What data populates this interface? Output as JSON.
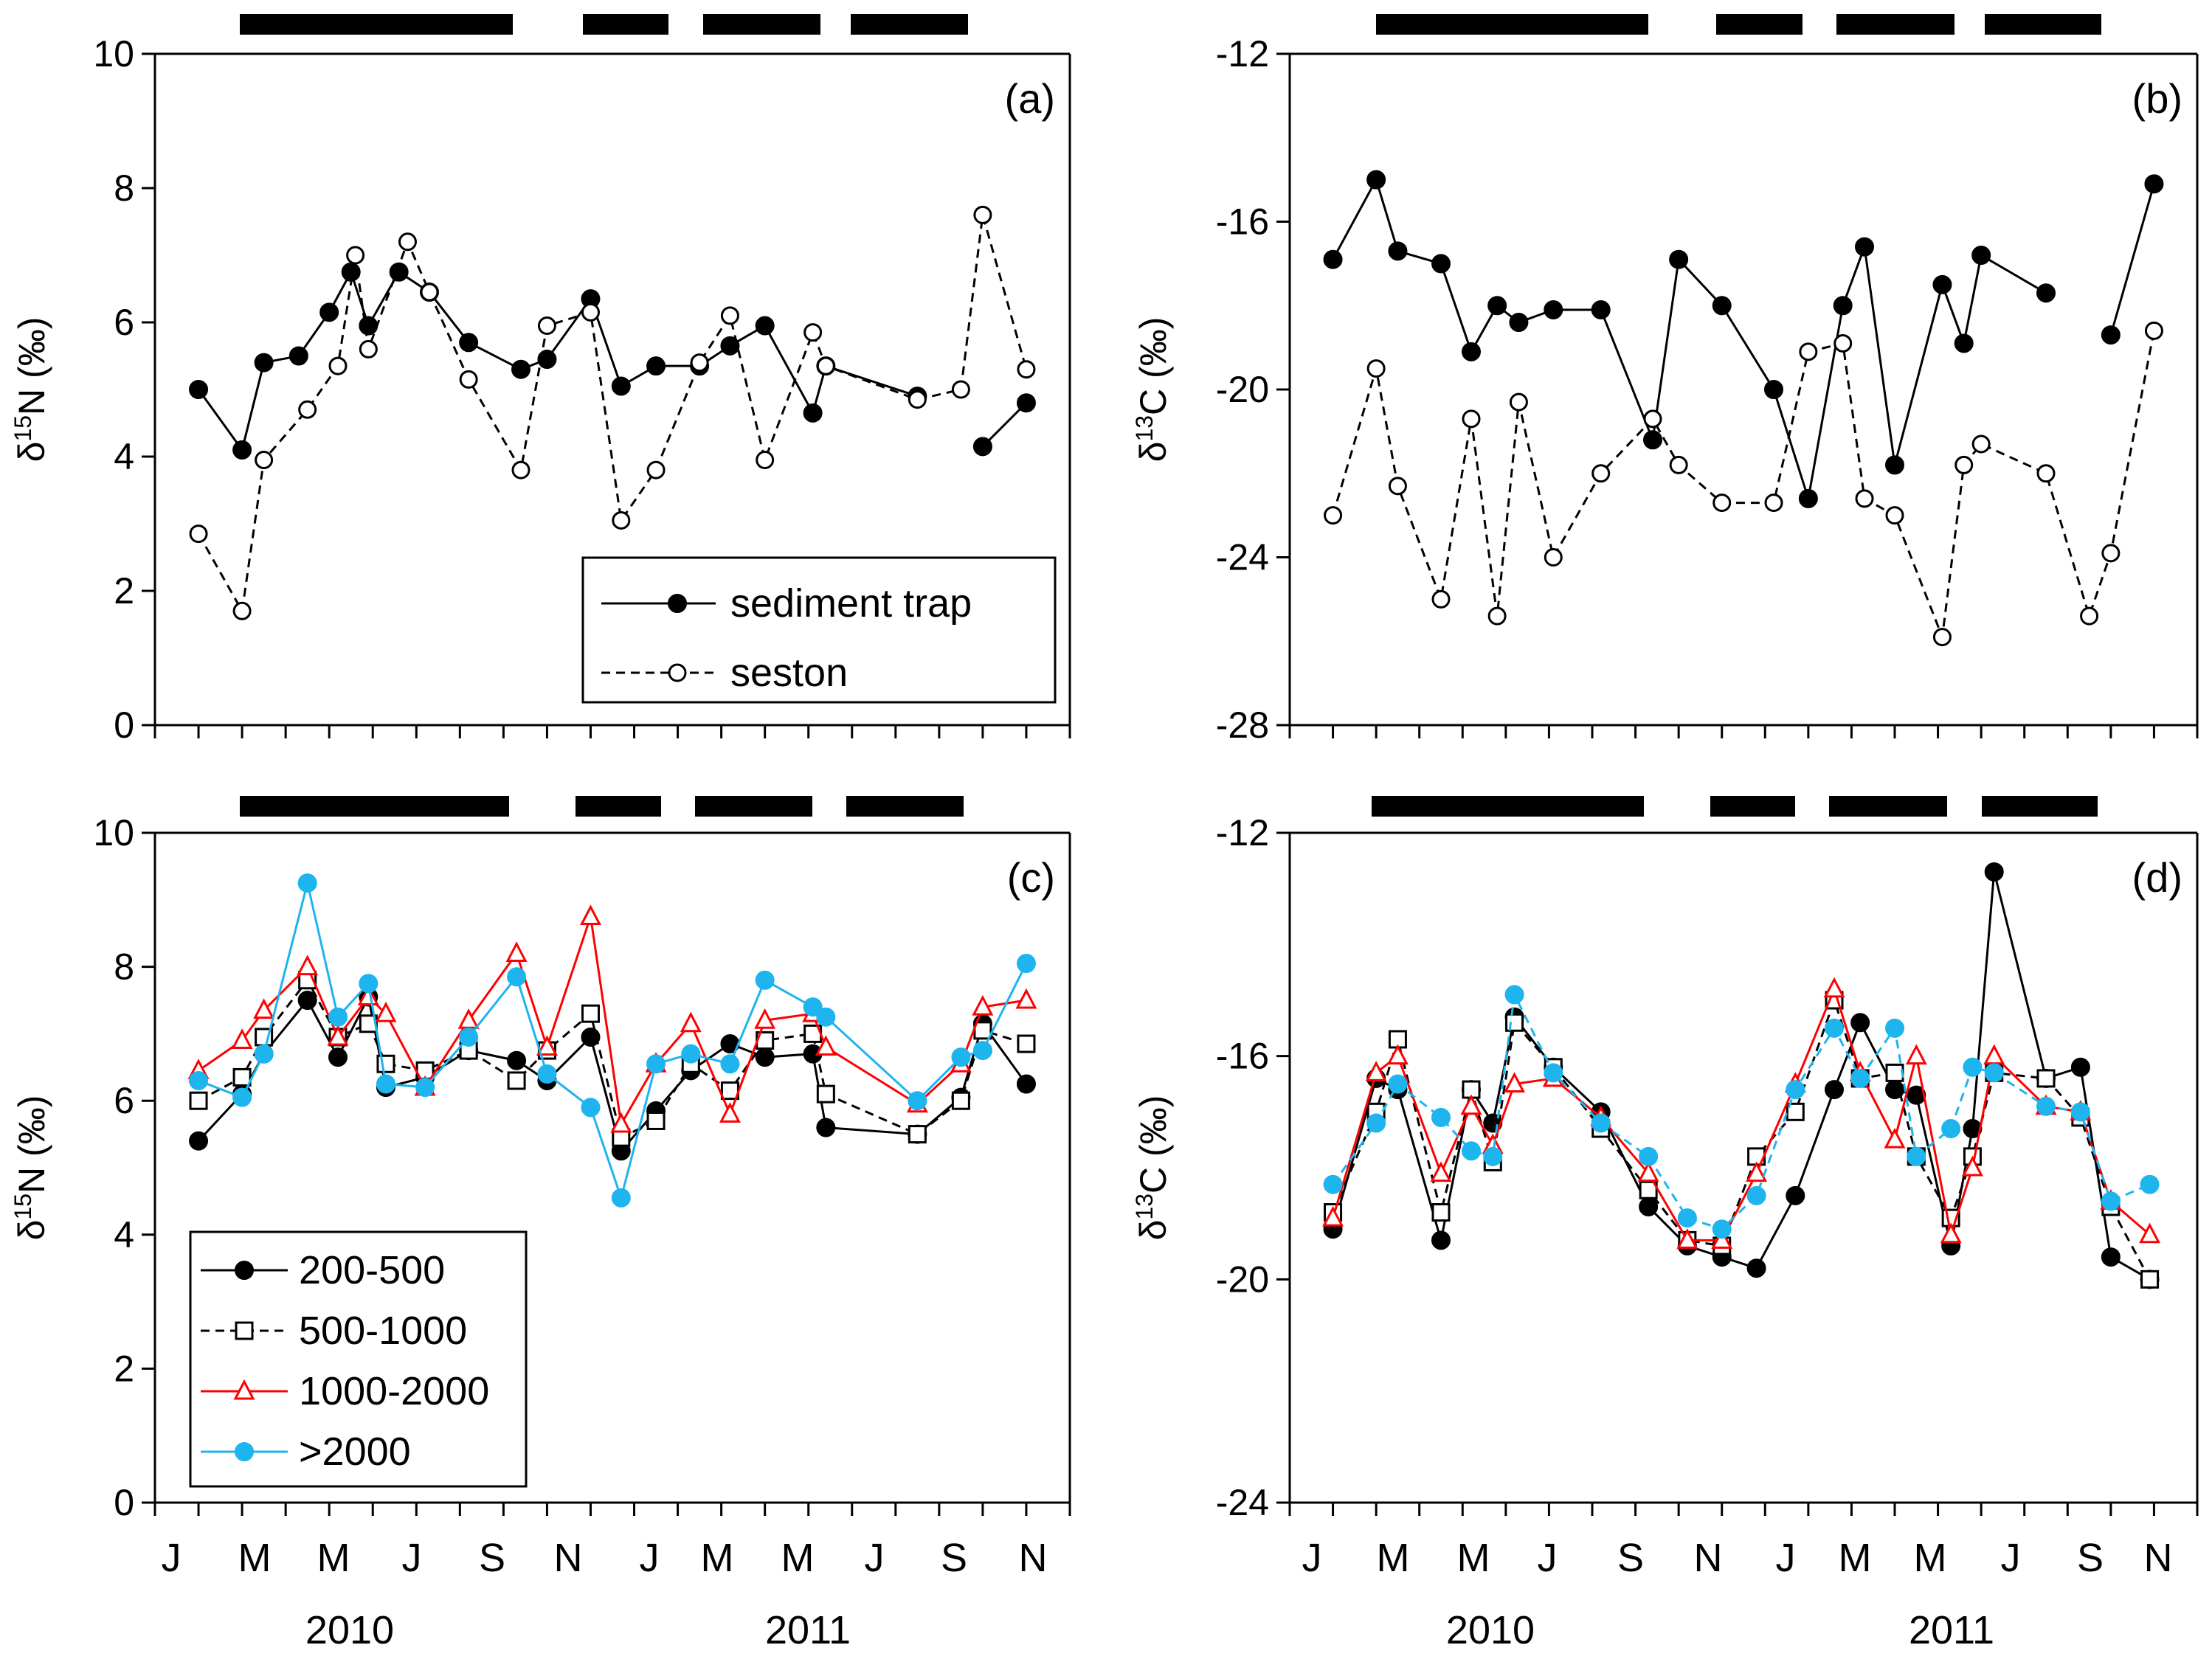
{
  "figure": {
    "month_ticks": [
      "J",
      "M",
      "M",
      "J",
      "S",
      "N",
      "J",
      "M",
      "M",
      "J",
      "S",
      "N"
    ],
    "year_labels": [
      "2010",
      "2011"
    ]
  },
  "chart_data": [
    {
      "type": "line",
      "panel_label": "(a)",
      "ylabel": "δ15N (‰)",
      "ylabel_parts": {
        "symbol": "δ",
        "sup": "15",
        "element": "N",
        "unit": "(‰)"
      },
      "ylim": [
        0,
        10
      ],
      "yticks": [
        0,
        2,
        4,
        6,
        8,
        10
      ],
      "ytick_labels": [
        "0",
        "2",
        "4",
        "6",
        "8",
        "10"
      ],
      "legend": "inside-bottom-right",
      "series": [
        {
          "name": "sediment trap",
          "style": "solid-filled",
          "color": "#000000",
          "points": [
            [
              1,
              5.0
            ],
            [
              2,
              4.1
            ],
            [
              2.5,
              5.4
            ],
            [
              3.3,
              5.5
            ],
            [
              4,
              6.15
            ],
            [
              4.5,
              6.75
            ],
            [
              4.9,
              5.95
            ],
            [
              5.6,
              6.75
            ],
            [
              6.3,
              6.45
            ],
            [
              7.2,
              5.7
            ],
            [
              8.4,
              5.3
            ],
            [
              9,
              5.45
            ],
            [
              10,
              6.35
            ],
            [
              10.7,
              5.05
            ],
            [
              11.5,
              5.35
            ],
            [
              12.5,
              5.35
            ],
            [
              13.2,
              5.65
            ],
            [
              14,
              5.95
            ],
            [
              15.1,
              4.65
            ],
            [
              15.4,
              5.35
            ],
            [
              17.5,
              4.9
            ]
          ],
          "points_break": [
            [
              19,
              4.15
            ],
            [
              20,
              4.8
            ]
          ]
        },
        {
          "name": "seston",
          "style": "dashed-open",
          "color": "#000000",
          "points": [
            [
              1,
              2.85
            ],
            [
              2,
              1.7
            ],
            [
              2.5,
              3.95
            ],
            [
              3.5,
              4.7
            ],
            [
              4.2,
              5.35
            ],
            [
              4.6,
              7.0
            ],
            [
              4.9,
              5.6
            ],
            [
              5.8,
              7.2
            ],
            [
              6.3,
              6.45
            ],
            [
              7.2,
              5.15
            ],
            [
              8.4,
              3.8
            ],
            [
              9,
              5.95
            ],
            [
              10,
              6.15
            ],
            [
              10.7,
              3.05
            ],
            [
              11.5,
              3.8
            ],
            [
              12.5,
              5.4
            ],
            [
              13.2,
              6.1
            ],
            [
              14,
              3.95
            ],
            [
              15.1,
              5.85
            ],
            [
              15.4,
              5.35
            ],
            [
              17.5,
              4.85
            ],
            [
              18.5,
              5.0
            ],
            [
              19,
              7.6
            ],
            [
              20,
              5.3
            ]
          ]
        }
      ]
    },
    {
      "type": "line",
      "panel_label": "(b)",
      "ylabel": "δ13C (‰)",
      "ylabel_parts": {
        "symbol": "δ",
        "sup": "13",
        "element": "C",
        "unit": "(‰)"
      },
      "ylim": [
        -28,
        -12
      ],
      "yticks": [
        -28,
        -24,
        -20,
        -16,
        -12
      ],
      "ytick_labels": [
        "-28",
        "-24",
        "-20",
        "-16",
        "-12"
      ],
      "series": [
        {
          "name": "sediment trap",
          "style": "solid-filled",
          "color": "#000000",
          "points": [
            [
              1,
              -16.9
            ],
            [
              2,
              -15.0
            ],
            [
              2.5,
              -16.7
            ],
            [
              3.5,
              -17.0
            ],
            [
              4.2,
              -19.1
            ],
            [
              4.8,
              -18.0
            ],
            [
              5.3,
              -18.4
            ],
            [
              6.1,
              -18.1
            ],
            [
              7.2,
              -18.1
            ],
            [
              8.4,
              -21.2
            ],
            [
              9,
              -16.9
            ],
            [
              10,
              -18.0
            ],
            [
              11.2,
              -20.0
            ],
            [
              12,
              -22.6
            ],
            [
              12.8,
              -18.0
            ],
            [
              13.3,
              -16.6
            ],
            [
              14,
              -21.8
            ],
            [
              15.1,
              -17.5
            ],
            [
              15.6,
              -18.9
            ],
            [
              16,
              -16.8
            ],
            [
              17.5,
              -17.7
            ]
          ],
          "points_break": [
            [
              19,
              -18.7
            ],
            [
              20,
              -15.1
            ]
          ]
        },
        {
          "name": "seston",
          "style": "dashed-open",
          "color": "#000000",
          "points": [
            [
              1,
              -23.0
            ],
            [
              2,
              -19.5
            ],
            [
              2.5,
              -22.3
            ],
            [
              3.5,
              -25.0
            ],
            [
              4.2,
              -20.7
            ],
            [
              4.8,
              -25.4
            ],
            [
              5.3,
              -20.3
            ],
            [
              6.1,
              -24.0
            ],
            [
              7.2,
              -22.0
            ],
            [
              8.4,
              -20.7
            ],
            [
              9,
              -21.8
            ],
            [
              10,
              -22.7
            ],
            [
              11.2,
              -22.7
            ],
            [
              12,
              -19.1
            ],
            [
              12.8,
              -18.9
            ],
            [
              13.3,
              -22.6
            ],
            [
              14,
              -23.0
            ],
            [
              15.1,
              -25.9
            ],
            [
              15.6,
              -21.8
            ],
            [
              16,
              -21.3
            ],
            [
              17.5,
              -22.0
            ],
            [
              18.5,
              -25.4
            ],
            [
              19,
              -23.9
            ],
            [
              20,
              -18.6
            ]
          ]
        }
      ]
    },
    {
      "type": "line",
      "panel_label": "(c)",
      "ylabel": "δ15N (‰)",
      "ylabel_parts": {
        "symbol": "δ",
        "sup": "15",
        "element": "N",
        "unit": "(‰)"
      },
      "ylim": [
        0,
        10
      ],
      "yticks": [
        0,
        2,
        4,
        6,
        8,
        10
      ],
      "ytick_labels": [
        "0",
        "2",
        "4",
        "6",
        "8",
        "10"
      ],
      "legend": "inside-bottom-left",
      "series": [
        {
          "name": "200-500",
          "style": "solid-filled",
          "color": "#000000",
          "x": [
            1,
            2,
            2.5,
            3.5,
            4.2,
            4.9,
            5.3,
            6.2,
            7.2,
            8.3,
            9,
            10,
            10.7,
            11.5,
            12.3,
            13.2,
            14,
            15.1,
            15.4,
            17.5,
            18.5,
            19,
            20
          ],
          "y": [
            5.4,
            6.1,
            6.7,
            7.5,
            6.65,
            7.55,
            6.2,
            6.35,
            6.75,
            6.6,
            6.3,
            6.95,
            5.25,
            5.85,
            6.45,
            6.85,
            6.65,
            6.7,
            5.6,
            5.5,
            6.05,
            7.15,
            6.25
          ]
        },
        {
          "name": "500-1000",
          "style": "dashed-open-square",
          "color": "#000000",
          "x": [
            1,
            2,
            2.5,
            3.5,
            4.2,
            4.9,
            5.3,
            6.2,
            7.2,
            8.3,
            9,
            10,
            10.7,
            11.5,
            12.3,
            13.2,
            14,
            15.1,
            15.4,
            17.5,
            18.5,
            19,
            20
          ],
          "y": [
            6.0,
            6.35,
            6.95,
            7.8,
            6.95,
            7.15,
            6.55,
            6.45,
            6.75,
            6.3,
            6.75,
            7.3,
            5.45,
            5.7,
            6.55,
            6.15,
            6.9,
            7.0,
            6.1,
            5.5,
            6.0,
            7.05,
            6.85
          ]
        },
        {
          "name": "1000-2000",
          "style": "solid-open-triangle",
          "color": "#ff0000",
          "x": [
            1,
            2,
            2.5,
            3.5,
            4.2,
            4.9,
            5.3,
            6.2,
            7.2,
            8.3,
            9,
            10,
            10.7,
            11.5,
            12.3,
            13.2,
            14,
            15.1,
            15.4,
            17.5,
            18.5,
            19,
            20
          ],
          "y": [
            6.45,
            6.9,
            7.35,
            8.0,
            6.95,
            7.55,
            7.3,
            6.2,
            7.2,
            8.2,
            6.8,
            8.75,
            5.65,
            6.55,
            7.15,
            5.8,
            7.2,
            7.3,
            6.8,
            5.95,
            6.55,
            7.4,
            7.5
          ]
        },
        {
          "name": ">2000",
          "style": "solid-filled",
          "color": "#1eb4ee",
          "x": [
            1,
            2,
            2.5,
            3.5,
            4.2,
            4.9,
            5.3,
            6.2,
            7.2,
            8.3,
            9,
            10,
            10.7,
            11.5,
            12.3,
            13.2,
            14,
            15.1,
            15.4,
            17.5,
            18.5,
            19,
            20
          ],
          "y": [
            6.3,
            6.05,
            6.7,
            9.25,
            7.25,
            7.75,
            6.25,
            6.2,
            6.95,
            7.85,
            6.4,
            5.9,
            4.55,
            6.55,
            6.7,
            6.55,
            7.8,
            7.4,
            7.25,
            6.0,
            6.65,
            6.75,
            8.05
          ]
        }
      ]
    },
    {
      "type": "line",
      "panel_label": "(d)",
      "ylabel": "δ13C (‰)",
      "ylabel_parts": {
        "symbol": "δ",
        "sup": "13",
        "element": "C",
        "unit": "(‰)"
      },
      "ylim": [
        -24,
        -12
      ],
      "yticks": [
        -24,
        -20,
        -16,
        -12
      ],
      "ytick_labels": [
        "-24",
        "-20",
        "-16",
        "-12"
      ],
      "xtick_labels": [
        "J",
        "M",
        "M",
        "J",
        "S",
        "N",
        "J",
        "M",
        "M",
        "J",
        "S",
        "N"
      ],
      "year_labels": [
        "2010",
        "2011"
      ],
      "series": [
        {
          "name": "200-500",
          "style": "solid-filled",
          "color": "#000000",
          "x": [
            1,
            2,
            2.5,
            3.5,
            4.2,
            4.7,
            5.2,
            6.1,
            7.2,
            8.3,
            9.2,
            10,
            10.8,
            11.7,
            12.6,
            13.2,
            14,
            14.5,
            15.3,
            15.8,
            16.3,
            17.5,
            18.3,
            19,
            19.9
          ],
          "y": [
            -19.1,
            -16.4,
            -16.6,
            -19.3,
            -16.6,
            -17.2,
            -15.3,
            -16.2,
            -17.0,
            -18.7,
            -19.4,
            -19.6,
            -19.8,
            -18.5,
            -16.6,
            -15.4,
            -16.6,
            -16.7,
            -19.4,
            -17.3,
            -12.7,
            -16.4,
            -16.2,
            -19.6,
            -20.0
          ]
        },
        {
          "name": "500-1000",
          "style": "dashed-open-square",
          "color": "#000000",
          "x": [
            1,
            2,
            2.5,
            3.5,
            4.2,
            4.7,
            5.2,
            6.1,
            7.2,
            8.3,
            9.2,
            10,
            10.8,
            11.7,
            12.6,
            13.2,
            14,
            14.5,
            15.3,
            15.8,
            16.3,
            17.5,
            18.3,
            19,
            19.9
          ],
          "y": [
            -18.8,
            -17.0,
            -15.7,
            -18.8,
            -16.6,
            -17.9,
            -15.4,
            -16.2,
            -17.3,
            -18.4,
            -19.3,
            -19.4,
            -17.8,
            -17.0,
            -15.0,
            -16.4,
            -16.3,
            -17.8,
            -18.9,
            -17.8,
            -16.3,
            -16.4,
            -17.1,
            -18.7,
            -20.0
          ]
        },
        {
          "name": "1000-2000",
          "style": "solid-open-triangle",
          "color": "#ff0000",
          "x": [
            1,
            2,
            2.5,
            3.5,
            4.2,
            4.7,
            5.2,
            6.1,
            7.2,
            8.3,
            9.2,
            10,
            10.8,
            11.7,
            12.6,
            13.2,
            14,
            14.5,
            15.3,
            15.8,
            16.3,
            17.5,
            18.3,
            19,
            19.9
          ],
          "y": [
            -18.9,
            -16.3,
            -16.0,
            -18.1,
            -16.9,
            -17.6,
            -16.5,
            -16.4,
            -17.1,
            -18.1,
            -19.3,
            -19.3,
            -18.1,
            -16.5,
            -14.8,
            -16.3,
            -17.5,
            -16.0,
            -19.2,
            -18.0,
            -16.0,
            -16.9,
            -17.0,
            -18.6,
            -19.2
          ]
        },
        {
          "name": ">2000",
          "style": "dashed-filled",
          "color": "#1eb4ee",
          "x": [
            1,
            2,
            2.5,
            3.5,
            4.2,
            4.7,
            5.2,
            6.1,
            7.2,
            8.3,
            9.2,
            10,
            10.8,
            11.7,
            12.6,
            13.2,
            14,
            14.5,
            15.3,
            15.8,
            16.3,
            17.5,
            18.3,
            19,
            19.9
          ],
          "y": [
            -18.3,
            -17.2,
            -16.5,
            -17.1,
            -17.7,
            -17.8,
            -14.9,
            -16.3,
            -17.2,
            -17.8,
            -18.9,
            -19.1,
            -18.5,
            -16.6,
            -15.5,
            -16.4,
            -15.5,
            -17.8,
            -17.3,
            -16.2,
            -16.3,
            -16.9,
            -17.0,
            -18.6,
            -18.3
          ]
        }
      ]
    }
  ]
}
